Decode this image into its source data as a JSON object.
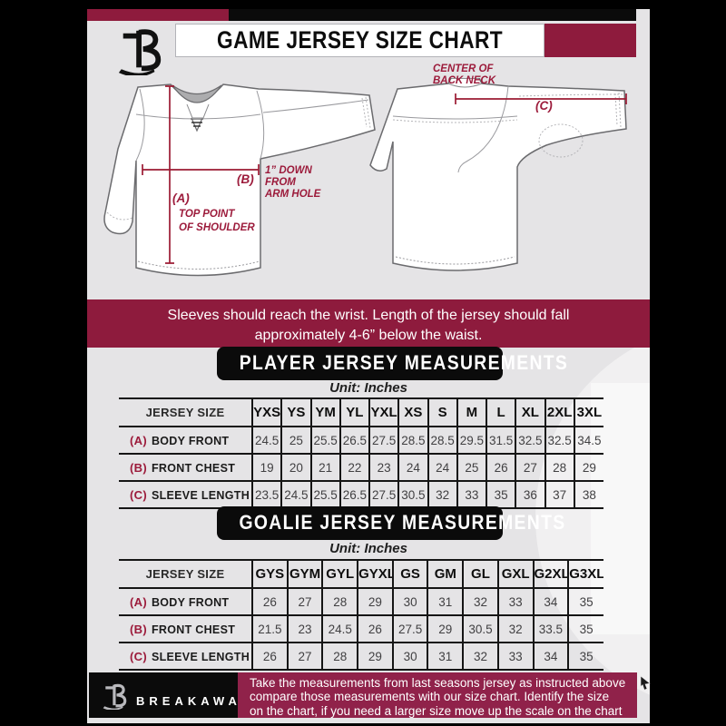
{
  "header": {
    "title": "GAME JERSEY SIZE CHART"
  },
  "diagram": {
    "front": {
      "a_label": "(A)",
      "a_note_line1": "TOP POINT",
      "a_note_line2": "OF SHOULDER",
      "b_label": "(B)",
      "b_note_line1": "1” DOWN",
      "b_note_line2": "FROM",
      "b_note_line3": "ARM HOLE"
    },
    "back": {
      "c_label": "(C)",
      "c_note_line1": "CENTER OF",
      "c_note_line2": "BACK NECK"
    }
  },
  "note_banner": {
    "line1": "Sleeves should reach the wrist. Length of the jersey should fall",
    "line2": "approximately 4-6” below the waist."
  },
  "player_section": {
    "title": "PLAYER JERSEY MEASUREMENTS",
    "unit": "Unit: Inches"
  },
  "player_table": {
    "header": [
      "JERSEY SIZE",
      "YXS",
      "YS",
      "YM",
      "YL",
      "YXL",
      "XS",
      "S",
      "M",
      "L",
      "XL",
      "2XL",
      "3XL"
    ],
    "rows": [
      {
        "prefix": "(A)",
        "label": "BODY FRONT",
        "values": [
          "24.5",
          "25",
          "25.5",
          "26.5",
          "27.5",
          "28.5",
          "28.5",
          "29.5",
          "31.5",
          "32.5",
          "32.5",
          "34.5"
        ]
      },
      {
        "prefix": "(B)",
        "label": "FRONT CHEST",
        "values": [
          "19",
          "20",
          "21",
          "22",
          "23",
          "24",
          "24",
          "25",
          "26",
          "27",
          "28",
          "29"
        ]
      },
      {
        "prefix": "(C)",
        "label": "SLEEVE LENGTH",
        "values": [
          "23.5",
          "24.5",
          "25.5",
          "26.5",
          "27.5",
          "30.5",
          "32",
          "33",
          "35",
          "36",
          "37",
          "38"
        ]
      }
    ]
  },
  "goalie_section": {
    "title": "GOALIE JERSEY MEASUREMENTS",
    "unit": "Unit: Inches"
  },
  "goalie_table": {
    "header": [
      "JERSEY SIZE",
      "GYS",
      "GYM",
      "GYL",
      "GYXL",
      "GS",
      "GM",
      "GL",
      "GXL",
      "G2XL",
      "G3XL"
    ],
    "rows": [
      {
        "prefix": "(A)",
        "label": "BODY FRONT",
        "values": [
          "26",
          "27",
          "28",
          "29",
          "30",
          "31",
          "32",
          "33",
          "34",
          "35"
        ]
      },
      {
        "prefix": "(B)",
        "label": "FRONT CHEST",
        "values": [
          "21.5",
          "23",
          "24.5",
          "26",
          "27.5",
          "29",
          "30.5",
          "32",
          "33.5",
          "35"
        ]
      },
      {
        "prefix": "(C)",
        "label": "SLEEVE LENGTH",
        "values": [
          "26",
          "27",
          "28",
          "29",
          "30",
          "31",
          "32",
          "33",
          "34",
          "35"
        ]
      }
    ]
  },
  "footer": {
    "brand": "BREAKAWAY",
    "line1": "Take the measurements from last seasons jersey as instructed above",
    "line2": "compare those measurements  with our size chart. Identify the size",
    "line3": "on the chart, if you need a larger size move up the scale on the chart"
  },
  "colors": {
    "maroon": "#8e1b3d",
    "line_red": "#9c1b33",
    "panel_gray": "#e5e4e6",
    "black": "#0b0b0b"
  }
}
